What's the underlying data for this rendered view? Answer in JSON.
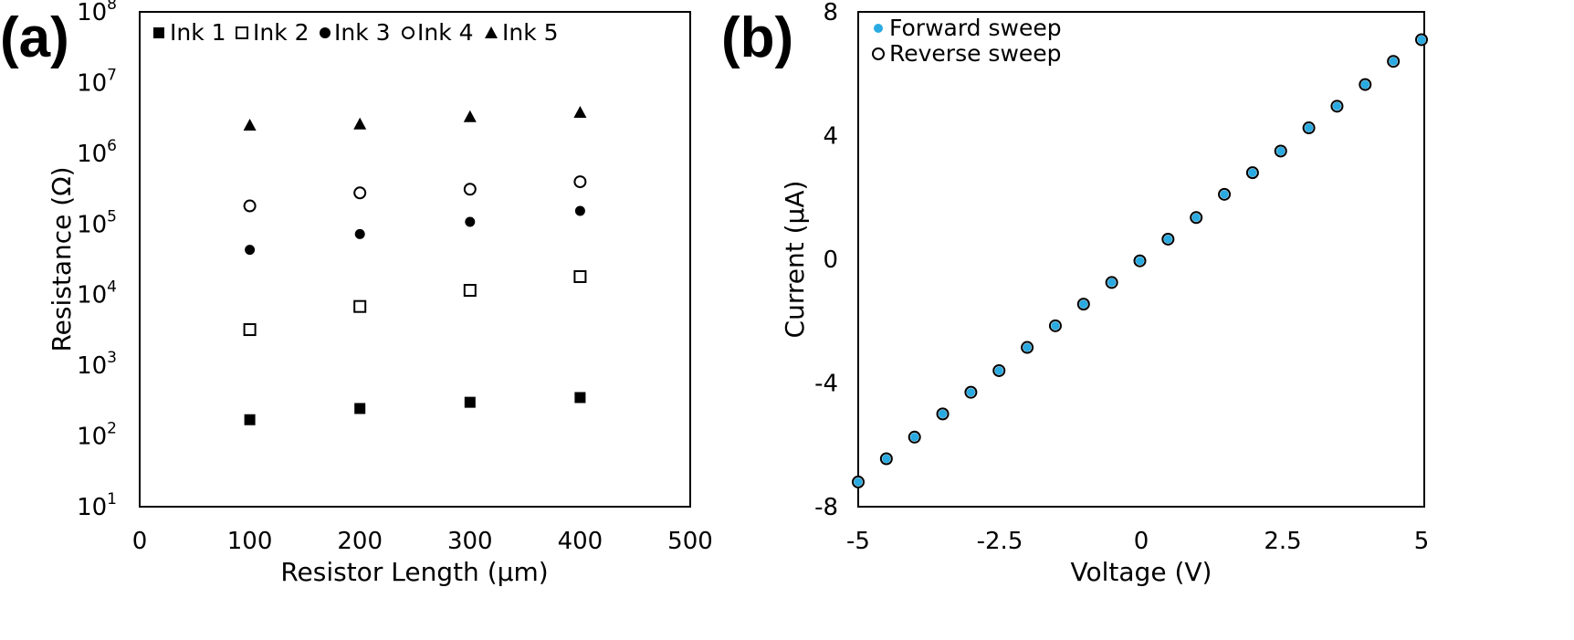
{
  "chart_data": [
    {
      "type": "scatter",
      "panel_label": "(a)",
      "xlabel": "Resistor Length (µm)",
      "ylabel": "Resistance (Ω)",
      "xlim": [
        0,
        500
      ],
      "ylim": [
        10,
        100000000
      ],
      "yscale": "log",
      "xticks": [
        "0",
        "100",
        "200",
        "300",
        "400",
        "500"
      ],
      "yticks": [
        {
          "base": "10",
          "exp": "1"
        },
        {
          "base": "10",
          "exp": "2"
        },
        {
          "base": "10",
          "exp": "3"
        },
        {
          "base": "10",
          "exp": "4"
        },
        {
          "base": "10",
          "exp": "5"
        },
        {
          "base": "10",
          "exp": "6"
        },
        {
          "base": "10",
          "exp": "7"
        },
        {
          "base": "10",
          "exp": "8"
        }
      ],
      "legend_position": "top",
      "x": [
        100,
        200,
        300,
        400
      ],
      "series": [
        {
          "name": "Ink 1",
          "marker": "filled-square",
          "values": [
            170,
            245,
            300,
            350
          ]
        },
        {
          "name": "Ink 2",
          "marker": "open-square",
          "values": [
            3200,
            6800,
            11500,
            18000
          ]
        },
        {
          "name": "Ink 3",
          "marker": "filled-circle",
          "values": [
            43000,
            72000,
            107000,
            153000
          ]
        },
        {
          "name": "Ink 4",
          "marker": "open-circle",
          "values": [
            180000,
            275000,
            310000,
            395000
          ]
        },
        {
          "name": "Ink 5",
          "marker": "filled-triangle",
          "values": [
            2500000,
            2600000,
            3300000,
            3800000
          ]
        }
      ]
    },
    {
      "type": "scatter",
      "panel_label": "(b)",
      "xlabel": "Voltage (V)",
      "ylabel": "Current (µA)",
      "xlim": [
        -5,
        5
      ],
      "ylim": [
        -8,
        8
      ],
      "xticks": [
        "-5",
        "-2.5",
        "0",
        "2.5",
        "5"
      ],
      "yticks": [
        "8",
        "4",
        "0",
        "-4",
        "-8"
      ],
      "legend_position": "top-left",
      "x": [
        -5,
        -4.5,
        -4,
        -3.5,
        -3,
        -2.5,
        -2,
        -1.5,
        -1,
        -0.5,
        0,
        0.5,
        1,
        1.5,
        2,
        2.5,
        3,
        3.5,
        4,
        4.5,
        5
      ],
      "series": [
        {
          "name": "Forward sweep",
          "marker": "filled-circle",
          "color": "#29aae1",
          "values": [
            -7.2,
            -6.45,
            -5.75,
            -5.0,
            -4.3,
            -3.6,
            -2.85,
            -2.15,
            -1.45,
            -0.75,
            -0.05,
            0.65,
            1.35,
            2.1,
            2.8,
            3.5,
            4.25,
            4.95,
            5.65,
            6.4,
            7.1
          ]
        },
        {
          "name": "Reverse sweep",
          "marker": "open-circle",
          "color": "#000000",
          "values": [
            -7.2,
            -6.45,
            -5.75,
            -5.0,
            -4.3,
            -3.6,
            -2.85,
            -2.15,
            -1.45,
            -0.75,
            -0.05,
            0.65,
            1.35,
            2.1,
            2.8,
            3.5,
            4.25,
            4.95,
            5.65,
            6.4,
            7.1
          ]
        }
      ]
    }
  ]
}
